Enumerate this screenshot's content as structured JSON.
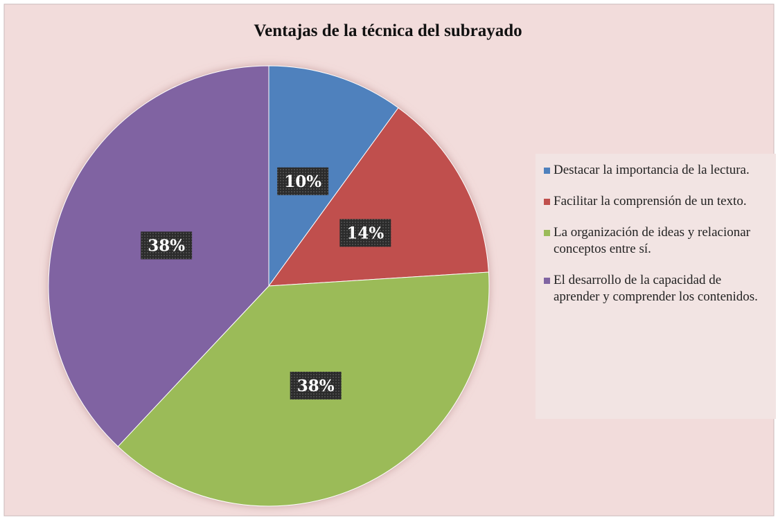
{
  "chart_data": {
    "type": "pie",
    "title": "Ventajas de la técnica del subrayado",
    "categories": [
      "Destacar la importancia de la lectura.",
      "Facilitar la comprensión de un texto.",
      "La organización de ideas y relacionar conceptos entre sí.",
      "El desarrollo de la capacidad de aprender y comprender los contenidos."
    ],
    "values": [
      10,
      14,
      38,
      38
    ],
    "value_labels": [
      "10%",
      "14%",
      "38%",
      "38%"
    ],
    "colors": [
      "#4f81bd",
      "#c0504d",
      "#9bbb59",
      "#8064a2"
    ],
    "legend": "right"
  }
}
